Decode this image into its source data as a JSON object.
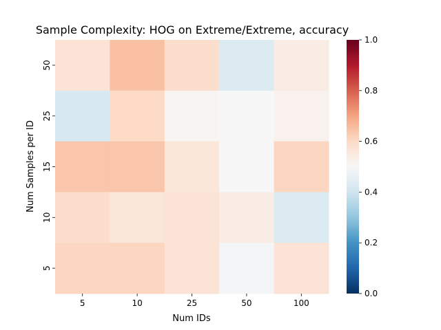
{
  "chart_data": {
    "type": "heatmap",
    "title": "Sample Complexity: HOG on Extreme/Extreme, accuracy",
    "xlabel": "Num IDs",
    "ylabel": "Num Samples per ID",
    "x_categories": [
      "5",
      "10",
      "25",
      "50",
      "100"
    ],
    "y_categories": [
      "50",
      "25",
      "15",
      "10",
      "5"
    ],
    "values": [
      [
        0.57,
        0.65,
        0.59,
        0.43,
        0.54
      ],
      [
        0.42,
        0.6,
        0.51,
        0.5,
        0.52
      ],
      [
        0.64,
        0.64,
        0.56,
        0.5,
        0.61
      ],
      [
        0.59,
        0.56,
        0.57,
        0.54,
        0.43
      ],
      [
        0.61,
        0.61,
        0.57,
        0.49,
        0.57
      ]
    ],
    "colorbar": {
      "min": 0.0,
      "max": 1.0,
      "ticks": [
        "0.0",
        "0.2",
        "0.4",
        "0.6",
        "0.8",
        "1.0"
      ],
      "colormap": "RdBu_r"
    },
    "grid": false
  }
}
